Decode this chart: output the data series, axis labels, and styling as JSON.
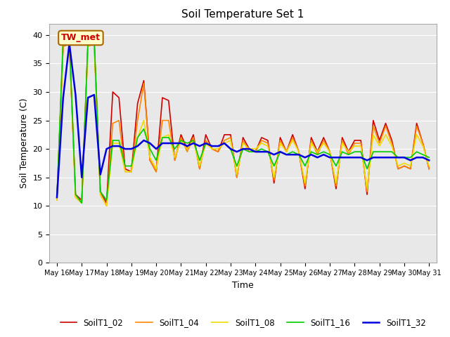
{
  "title": "Soil Temperature Set 1",
  "xlabel": "Time",
  "ylabel": "Soil Temperature (C)",
  "ylim": [
    0,
    42
  ],
  "yticks": [
    0,
    5,
    10,
    15,
    20,
    25,
    30,
    35,
    40
  ],
  "annotation_text": "TW_met",
  "legend_labels": [
    "SoilT1_02",
    "SoilT1_04",
    "SoilT1_08",
    "SoilT1_16",
    "SoilT1_32"
  ],
  "legend_colors": [
    "#cc0000",
    "#ff8800",
    "#eedd00",
    "#00cc00",
    "#0000dd"
  ],
  "line_widths": [
    1.2,
    1.2,
    1.2,
    1.2,
    1.8
  ],
  "bg_color": "#e8e8e8",
  "fig_bg": "#ffffff",
  "x_tick_labels": [
    "May 16",
    "May 17",
    "May 18",
    "May 19",
    "May 20",
    "May 21",
    "May 22",
    "May 23",
    "May 24",
    "May 25",
    "May 26",
    "May 27",
    "May 28",
    "May 29",
    "May 30",
    "May 31"
  ],
  "series": {
    "SoilT1_02": {
      "color": "#cc0000",
      "lw": 1.2,
      "data_x": [
        0,
        0.25,
        0.5,
        0.75,
        1.0,
        1.25,
        1.5,
        1.75,
        2.0,
        2.25,
        2.5,
        2.75,
        3.0,
        3.25,
        3.5,
        3.75,
        4.0,
        4.25,
        4.5,
        4.75,
        5.0,
        5.25,
        5.5,
        5.75,
        6.0,
        6.25,
        6.5,
        6.75,
        7.0,
        7.25,
        7.5,
        7.75,
        8.0,
        8.25,
        8.5,
        8.75,
        9.0,
        9.25,
        9.5,
        9.75,
        10.0,
        10.25,
        10.5,
        10.75,
        11.0,
        11.25,
        11.5,
        11.75,
        12.0,
        12.25,
        12.5,
        12.75,
        13.0,
        13.25,
        13.5,
        13.75,
        14.0,
        14.25,
        14.5,
        14.75,
        15.0
      ],
      "data_y": [
        11.5,
        38.0,
        38.5,
        12.0,
        11.0,
        38.5,
        39.0,
        12.5,
        10.5,
        30.0,
        29.0,
        16.5,
        16.0,
        28.0,
        32.0,
        18.0,
        16.0,
        29.0,
        28.5,
        18.0,
        22.5,
        20.0,
        22.5,
        16.5,
        22.5,
        20.0,
        19.5,
        22.5,
        22.5,
        15.0,
        22.0,
        20.0,
        19.5,
        22.0,
        21.5,
        14.0,
        22.0,
        19.5,
        22.5,
        19.5,
        13.0,
        22.0,
        19.5,
        22.0,
        19.5,
        13.0,
        22.0,
        19.5,
        21.5,
        21.5,
        12.0,
        25.0,
        21.5,
        24.5,
        21.5,
        16.5,
        17.0,
        16.5,
        24.5,
        21.0,
        16.5
      ]
    },
    "SoilT1_04": {
      "color": "#ff8800",
      "lw": 1.2,
      "data_x": [
        0,
        0.25,
        0.5,
        0.75,
        1.0,
        1.25,
        1.5,
        1.75,
        2.0,
        2.25,
        2.5,
        2.75,
        3.0,
        3.25,
        3.5,
        3.75,
        4.0,
        4.25,
        4.5,
        4.75,
        5.0,
        5.25,
        5.5,
        5.75,
        6.0,
        6.25,
        6.5,
        6.75,
        7.0,
        7.25,
        7.5,
        7.75,
        8.0,
        8.25,
        8.5,
        8.75,
        9.0,
        9.25,
        9.5,
        9.75,
        10.0,
        10.25,
        10.5,
        10.75,
        11.0,
        11.25,
        11.5,
        11.75,
        12.0,
        12.25,
        12.5,
        12.75,
        13.0,
        13.25,
        13.5,
        13.75,
        14.0,
        14.25,
        14.5,
        14.75,
        15.0
      ],
      "data_y": [
        11.0,
        38.0,
        38.5,
        11.5,
        10.5,
        38.0,
        38.5,
        12.0,
        10.0,
        24.5,
        25.0,
        16.0,
        16.0,
        25.0,
        31.5,
        18.0,
        16.0,
        25.0,
        25.0,
        18.0,
        22.0,
        19.5,
        22.0,
        16.5,
        21.5,
        20.0,
        19.5,
        21.5,
        22.0,
        15.0,
        21.5,
        19.5,
        19.5,
        21.5,
        21.0,
        14.5,
        21.5,
        19.5,
        22.0,
        19.5,
        13.5,
        21.5,
        19.0,
        21.5,
        19.5,
        13.5,
        21.5,
        19.0,
        21.0,
        21.0,
        12.5,
        24.0,
        21.0,
        24.0,
        21.0,
        16.5,
        17.0,
        16.5,
        24.0,
        21.0,
        16.5
      ]
    },
    "SoilT1_08": {
      "color": "#eedd00",
      "lw": 1.2,
      "data_x": [
        0,
        0.25,
        0.5,
        0.75,
        1.0,
        1.25,
        1.5,
        1.75,
        2.0,
        2.25,
        2.5,
        2.75,
        3.0,
        3.25,
        3.5,
        3.75,
        4.0,
        4.25,
        4.5,
        4.75,
        5.0,
        5.25,
        5.5,
        5.75,
        6.0,
        6.25,
        6.5,
        6.75,
        7.0,
        7.25,
        7.5,
        7.75,
        8.0,
        8.25,
        8.5,
        8.75,
        9.0,
        9.25,
        9.5,
        9.75,
        10.0,
        10.25,
        10.5,
        10.75,
        11.0,
        11.25,
        11.5,
        11.75,
        12.0,
        12.25,
        12.5,
        12.75,
        13.0,
        13.25,
        13.5,
        13.75,
        14.0,
        14.25,
        14.5,
        14.75,
        15.0
      ],
      "data_y": [
        11.0,
        38.5,
        38.5,
        11.5,
        10.5,
        38.0,
        38.5,
        12.0,
        10.0,
        21.0,
        21.0,
        16.0,
        16.0,
        22.0,
        25.0,
        18.5,
        16.5,
        22.0,
        22.5,
        18.5,
        21.5,
        20.0,
        21.5,
        17.0,
        21.0,
        20.0,
        20.0,
        21.0,
        21.5,
        15.5,
        21.0,
        20.0,
        20.0,
        21.0,
        20.5,
        15.0,
        21.0,
        19.5,
        21.5,
        19.5,
        14.0,
        21.0,
        19.5,
        21.0,
        19.5,
        14.0,
        21.0,
        19.5,
        20.5,
        20.5,
        13.0,
        22.5,
        20.5,
        22.5,
        20.5,
        17.0,
        17.5,
        17.0,
        22.5,
        20.5,
        17.0
      ]
    },
    "SoilT1_16": {
      "color": "#00cc00",
      "lw": 1.2,
      "data_x": [
        0,
        0.25,
        0.5,
        0.75,
        1.0,
        1.25,
        1.5,
        1.75,
        2.0,
        2.25,
        2.5,
        2.75,
        3.0,
        3.25,
        3.5,
        3.75,
        4.0,
        4.25,
        4.5,
        4.75,
        5.0,
        5.25,
        5.5,
        5.75,
        6.0,
        6.25,
        6.5,
        6.75,
        7.0,
        7.25,
        7.5,
        7.75,
        8.0,
        8.25,
        8.5,
        8.75,
        9.0,
        9.25,
        9.5,
        9.75,
        10.0,
        10.25,
        10.5,
        10.75,
        11.0,
        11.25,
        11.5,
        11.75,
        12.0,
        12.25,
        12.5,
        12.75,
        13.0,
        13.25,
        13.5,
        13.75,
        14.0,
        14.25,
        14.5,
        14.75,
        15.0
      ],
      "data_y": [
        11.5,
        39.5,
        39.5,
        12.0,
        10.5,
        39.0,
        39.5,
        12.5,
        11.0,
        21.5,
        21.5,
        17.0,
        17.0,
        22.0,
        23.5,
        20.0,
        18.0,
        22.0,
        22.0,
        20.0,
        21.5,
        21.0,
        21.5,
        18.0,
        21.0,
        20.5,
        20.5,
        21.0,
        20.0,
        17.0,
        20.0,
        19.5,
        19.5,
        20.0,
        19.5,
        17.0,
        19.5,
        19.0,
        19.5,
        19.0,
        17.0,
        19.5,
        19.0,
        19.5,
        19.0,
        17.0,
        19.5,
        19.0,
        19.5,
        19.5,
        16.5,
        19.5,
        19.5,
        19.5,
        19.5,
        18.5,
        18.5,
        18.5,
        19.5,
        19.0,
        18.5
      ]
    },
    "SoilT1_32": {
      "color": "#0000dd",
      "lw": 1.8,
      "data_x": [
        0,
        0.25,
        0.5,
        0.75,
        1.0,
        1.25,
        1.5,
        1.75,
        2.0,
        2.25,
        2.5,
        2.75,
        3.0,
        3.25,
        3.5,
        3.75,
        4.0,
        4.25,
        4.5,
        4.75,
        5.0,
        5.25,
        5.5,
        5.75,
        6.0,
        6.25,
        6.5,
        6.75,
        7.0,
        7.25,
        7.5,
        7.75,
        8.0,
        8.25,
        8.5,
        8.75,
        9.0,
        9.25,
        9.5,
        9.75,
        10.0,
        10.25,
        10.5,
        10.75,
        11.0,
        11.25,
        11.5,
        11.75,
        12.0,
        12.25,
        12.5,
        12.75,
        13.0,
        13.25,
        13.5,
        13.75,
        14.0,
        14.25,
        14.5,
        14.75,
        15.0
      ],
      "data_y": [
        11.5,
        29.0,
        38.5,
        29.5,
        15.0,
        29.0,
        29.5,
        15.5,
        20.0,
        20.5,
        20.5,
        20.0,
        20.0,
        20.5,
        21.5,
        21.0,
        20.0,
        21.0,
        21.0,
        21.0,
        21.0,
        20.5,
        21.0,
        20.5,
        21.0,
        20.5,
        20.5,
        21.0,
        20.0,
        19.5,
        20.0,
        20.0,
        19.5,
        19.5,
        19.5,
        19.0,
        19.5,
        19.0,
        19.0,
        19.0,
        18.5,
        19.0,
        18.5,
        19.0,
        18.5,
        18.5,
        18.5,
        18.5,
        18.5,
        18.5,
        18.0,
        18.5,
        18.5,
        18.5,
        18.5,
        18.5,
        18.5,
        18.0,
        18.5,
        18.5,
        18.0
      ]
    }
  }
}
